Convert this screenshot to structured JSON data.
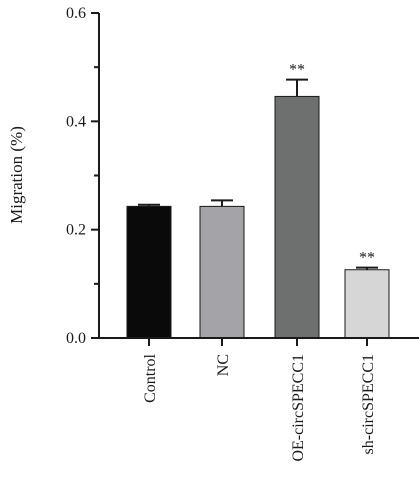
{
  "chart_data": {
    "type": "bar",
    "title": "",
    "xlabel": "",
    "ylabel": "Migration (%)",
    "ylim": [
      0,
      0.6
    ],
    "yticks": [
      "0.0",
      "0.2",
      "0.4",
      "0.6"
    ],
    "grid": false,
    "categories": [
      "Control",
      "NC",
      "OE-circSPECC1",
      "sh-circSPECC1"
    ],
    "values": [
      0.243,
      0.243,
      0.446,
      0.126
    ],
    "errors": [
      0.003,
      0.011,
      0.031,
      0.004
    ],
    "significance": [
      "",
      "",
      "**",
      "**"
    ],
    "colors": [
      "#0a0a0a",
      "#a3a3a8",
      "#6e706f",
      "#d6d6d6"
    ]
  }
}
